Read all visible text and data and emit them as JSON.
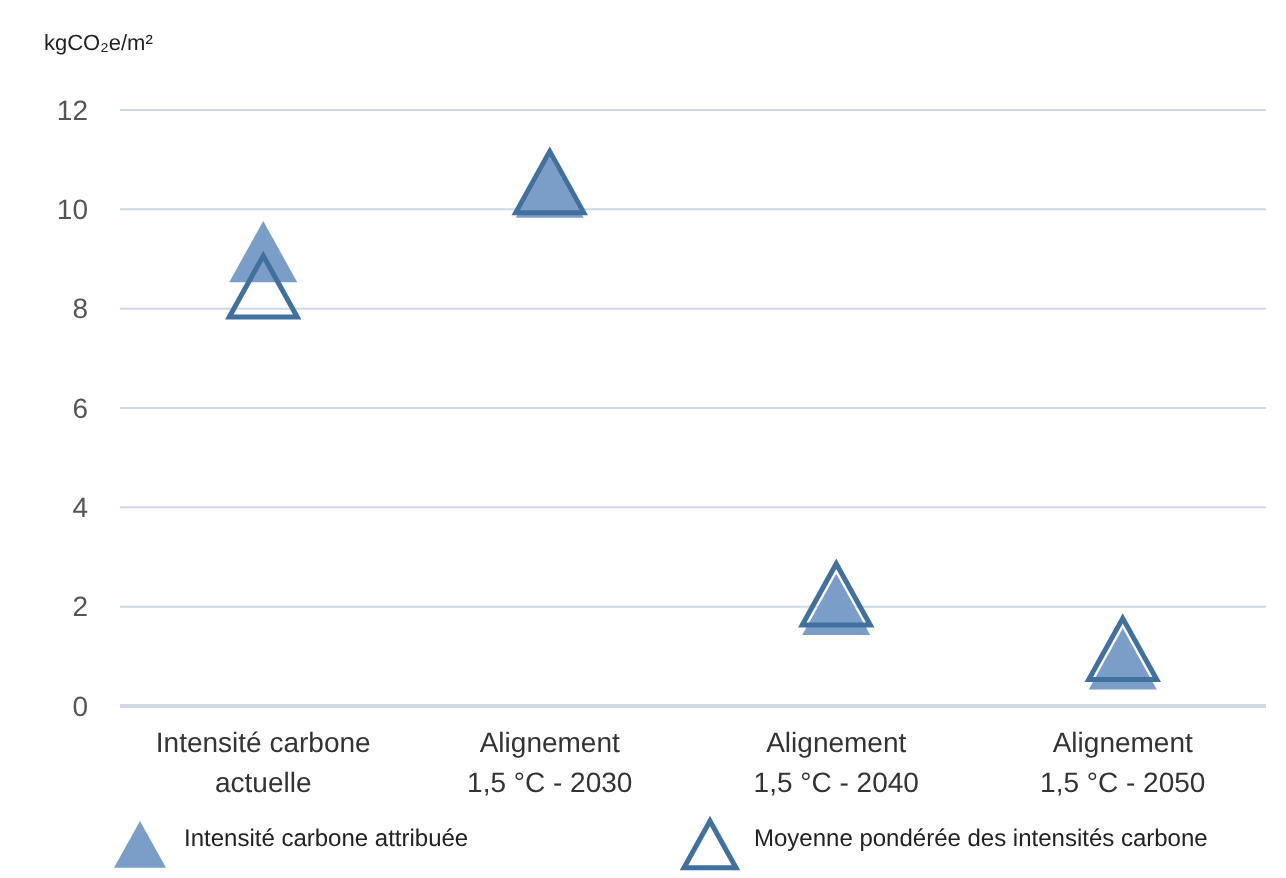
{
  "chart_data": {
    "type": "scatter",
    "ylabel": "kgCO₂e/m²",
    "categories": [
      "Intensité carbone\nactuelle",
      "Alignement\n1,5 °C - 2030",
      "Alignement\n1,5 °C - 2040",
      "Alignement\n1,5 °C - 2050"
    ],
    "series": [
      {
        "name": "Intensité carbone attribuée",
        "color": "#7b9ec9",
        "marker": "triangle",
        "values": [
          9.0,
          10.3,
          1.9,
          0.8
        ]
      },
      {
        "name": "Moyenne pondérée des intensités carbone",
        "color": "#41709f",
        "marker": "triangle-open",
        "values": [
          8.3,
          10.4,
          2.1,
          1.0
        ]
      }
    ],
    "ylim": [
      0,
      12
    ],
    "yticks": [
      0,
      2,
      4,
      6,
      8,
      10,
      12
    ],
    "grid": "y",
    "legend": "bottom"
  }
}
